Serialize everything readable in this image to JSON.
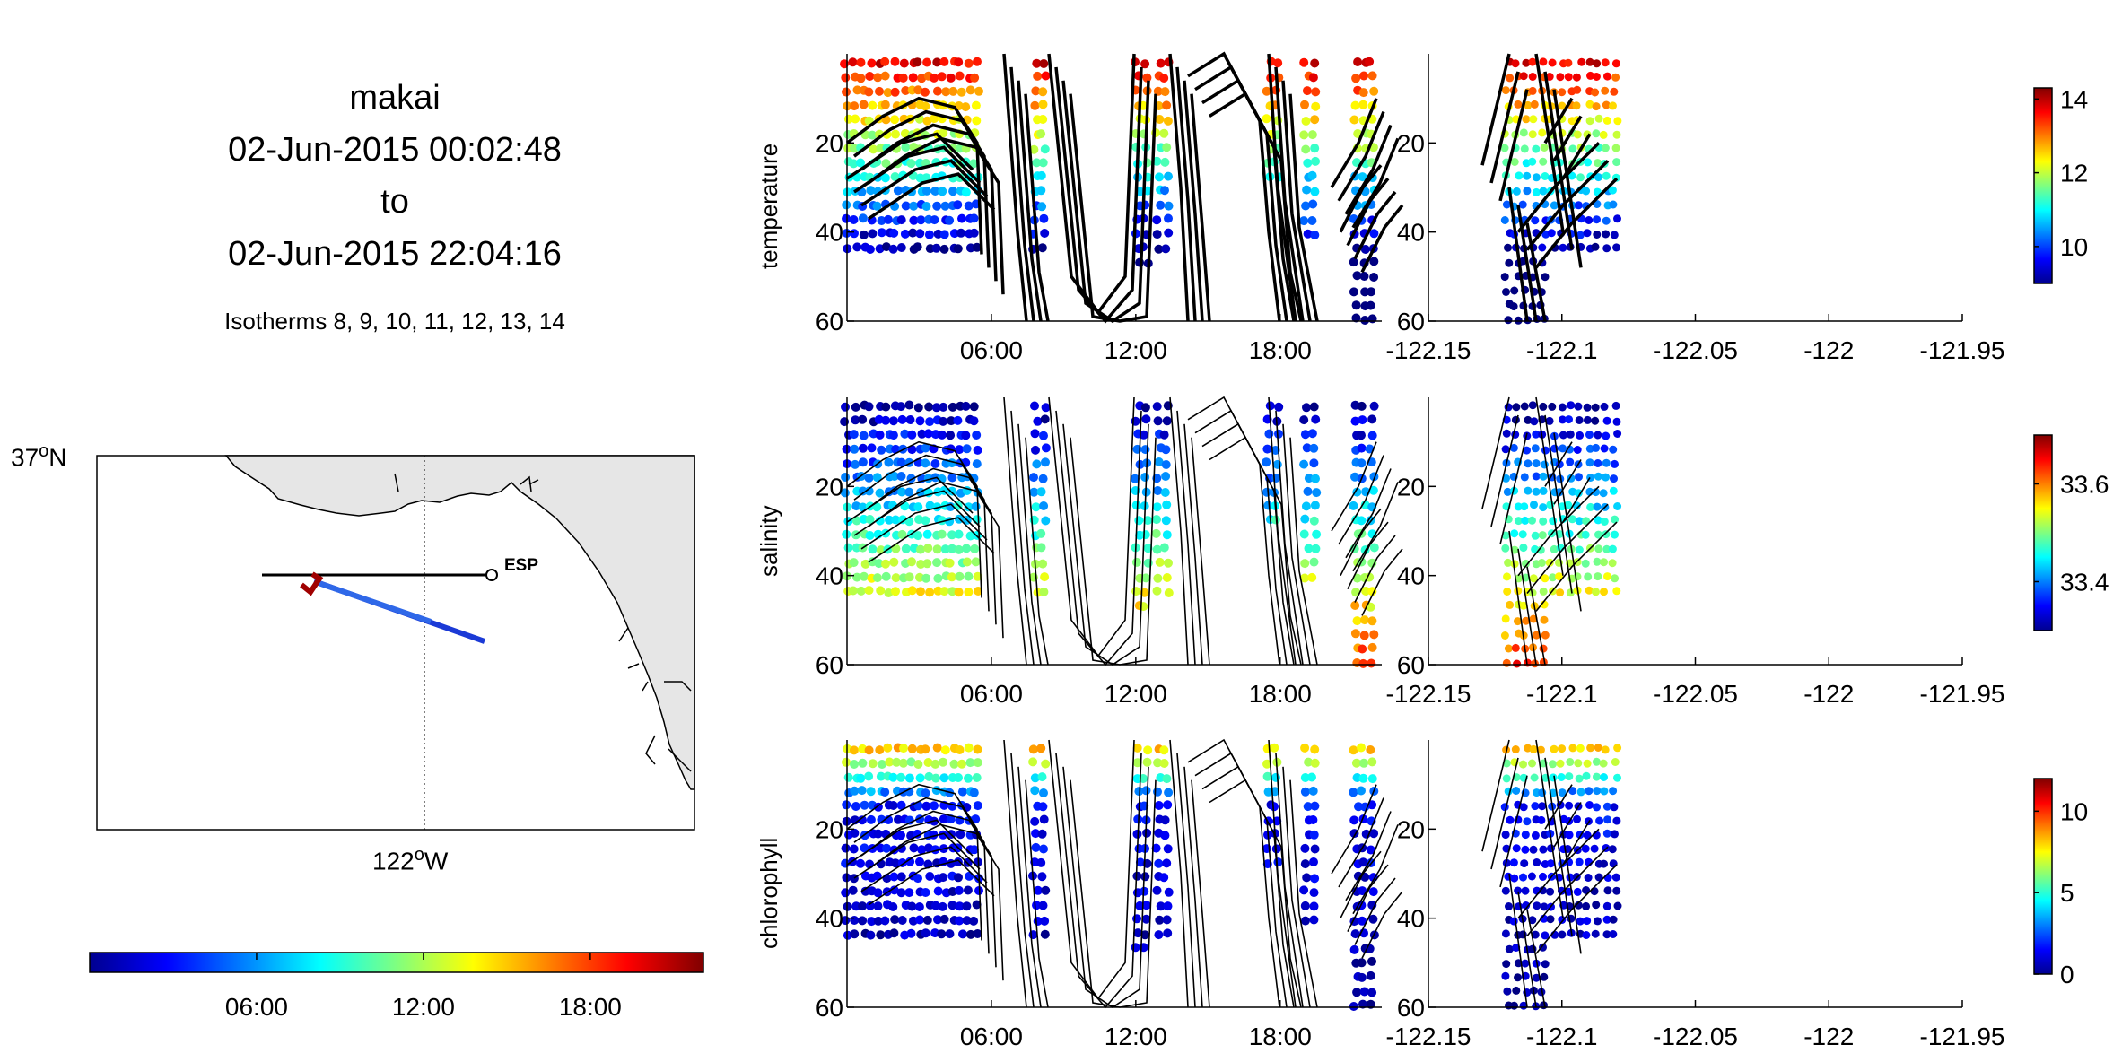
{
  "header": {
    "vehicle": "makai",
    "start": "02-Jun-2015 00:02:48",
    "to": "to",
    "end": "02-Jun-2015 22:04:16",
    "isotherms": "Isotherms 8, 9, 10, 11, 12, 13, 14"
  },
  "map": {
    "lat_deg": "37",
    "lat_hemi": "N",
    "lon_deg": "122",
    "lon_hemi": "W",
    "station_label": "ESP",
    "land_color": "#e6e6e6"
  },
  "time_colorbar": {
    "ticks": [
      "06:00",
      "12:00",
      "18:00"
    ],
    "range_hours": [
      0,
      22.07
    ]
  },
  "chart_data": [
    {
      "type": "scatter",
      "ylabel": "temperature",
      "x_time_ticks": [
        "06:00",
        "12:00",
        "18:00"
      ],
      "x_lon_ticks": [
        "-122.15",
        "-122.1",
        "-122.05",
        "-122",
        "-121.95"
      ],
      "y_ticks": [
        "20",
        "40",
        "60"
      ],
      "ylim": [
        60,
        0
      ],
      "colorbar": {
        "ticks": [
          "14",
          "12",
          "10"
        ],
        "tick_values": [
          14,
          12,
          10
        ],
        "range": [
          9,
          14.3
        ]
      },
      "contours": "thick"
    },
    {
      "type": "scatter",
      "ylabel": "salinity",
      "x_time_ticks": [
        "06:00",
        "12:00",
        "18:00"
      ],
      "x_lon_ticks": [
        "-122.15",
        "-122.1",
        "-122.05",
        "-122",
        "-121.95"
      ],
      "y_ticks": [
        "20",
        "40",
        "60"
      ],
      "ylim": [
        60,
        0
      ],
      "colorbar": {
        "ticks": [
          "33.6",
          "33.4"
        ],
        "tick_values": [
          33.6,
          33.4
        ],
        "range": [
          33.3,
          33.7
        ]
      },
      "contours": "thin"
    },
    {
      "type": "scatter",
      "ylabel": "chlorophyll",
      "x_time_ticks": [
        "06:00",
        "12:00",
        "18:00"
      ],
      "x_lon_ticks": [
        "-122.15",
        "-122.1",
        "-122.05",
        "-122",
        "-121.95"
      ],
      "y_ticks": [
        "20",
        "40",
        "60"
      ],
      "ylim": [
        60,
        0
      ],
      "colorbar": {
        "ticks": [
          "10",
          "5",
          "0"
        ],
        "tick_values": [
          10,
          5,
          0
        ],
        "range": [
          0,
          12
        ]
      },
      "contours": "thin"
    }
  ]
}
